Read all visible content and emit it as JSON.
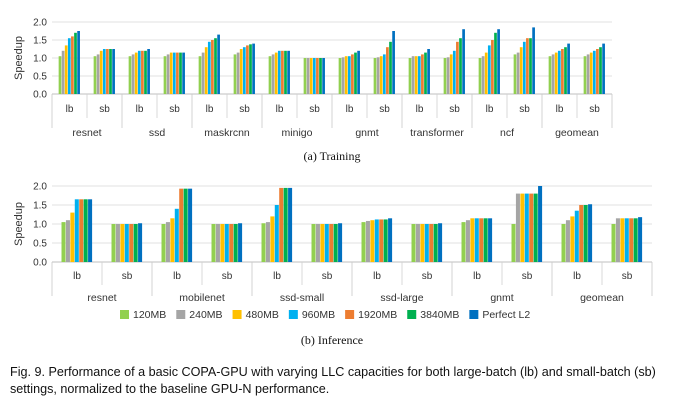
{
  "chart_data": [
    {
      "type": "bar",
      "title": "(a) Training",
      "ylabel": "Speedup",
      "ylim": [
        0,
        2
      ],
      "yticks": [
        "0.0",
        "0.5",
        "1.0",
        "1.5",
        "2.0"
      ],
      "groups": [
        "resnet",
        "ssd",
        "maskrcnn",
        "minigo",
        "gnmt",
        "transformer",
        "ncf",
        "geomean"
      ],
      "categories": [
        "lb",
        "sb"
      ],
      "series": [
        {
          "name": "120MB",
          "values": [
            [
              1.05,
              1.05
            ],
            [
              1.05,
              1.05
            ],
            [
              1.05,
              1.1
            ],
            [
              1.05,
              1.0
            ],
            [
              1.0,
              1.0
            ],
            [
              1.0,
              1.0
            ],
            [
              1.0,
              1.1
            ],
            [
              1.05,
              1.05
            ]
          ]
        },
        {
          "name": "240MB",
          "values": [
            [
              1.2,
              1.1
            ],
            [
              1.1,
              1.1
            ],
            [
              1.15,
              1.15
            ],
            [
              1.1,
              1.0
            ],
            [
              1.02,
              1.02
            ],
            [
              1.05,
              1.02
            ],
            [
              1.05,
              1.15
            ],
            [
              1.1,
              1.1
            ]
          ]
        },
        {
          "name": "480MB",
          "values": [
            [
              1.35,
              1.2
            ],
            [
              1.15,
              1.15
            ],
            [
              1.3,
              1.25
            ],
            [
              1.15,
              1.0
            ],
            [
              1.05,
              1.05
            ],
            [
              1.05,
              1.1
            ],
            [
              1.15,
              1.3
            ],
            [
              1.15,
              1.15
            ]
          ]
        },
        {
          "name": "960MB",
          "values": [
            [
              1.55,
              1.25
            ],
            [
              1.2,
              1.15
            ],
            [
              1.45,
              1.3
            ],
            [
              1.2,
              1.0
            ],
            [
              1.05,
              1.1
            ],
            [
              1.05,
              1.2
            ],
            [
              1.35,
              1.45
            ],
            [
              1.2,
              1.2
            ]
          ]
        },
        {
          "name": "1920MB",
          "values": [
            [
              1.6,
              1.25
            ],
            [
              1.2,
              1.15
            ],
            [
              1.5,
              1.35
            ],
            [
              1.2,
              1.0
            ],
            [
              1.1,
              1.3
            ],
            [
              1.1,
              1.45
            ],
            [
              1.5,
              1.55
            ],
            [
              1.25,
              1.25
            ]
          ]
        },
        {
          "name": "3840MB",
          "values": [
            [
              1.7,
              1.25
            ],
            [
              1.2,
              1.15
            ],
            [
              1.55,
              1.38
            ],
            [
              1.2,
              1.0
            ],
            [
              1.15,
              1.45
            ],
            [
              1.15,
              1.55
            ],
            [
              1.7,
              1.55
            ],
            [
              1.3,
              1.3
            ]
          ]
        },
        {
          "name": "Perfect L2",
          "values": [
            [
              1.75,
              1.25
            ],
            [
              1.25,
              1.15
            ],
            [
              1.65,
              1.4
            ],
            [
              1.2,
              1.0
            ],
            [
              1.2,
              1.75
            ],
            [
              1.25,
              1.8
            ],
            [
              1.8,
              1.85
            ],
            [
              1.4,
              1.4
            ]
          ]
        }
      ]
    },
    {
      "type": "bar",
      "title": "(b) Inference",
      "ylabel": "Speedup",
      "ylim": [
        0,
        2
      ],
      "yticks": [
        "0.0",
        "0.5",
        "1.0",
        "1.5",
        "2.0"
      ],
      "groups": [
        "resnet",
        "mobilenet",
        "ssd-small",
        "ssd-large",
        "gnmt",
        "geomean"
      ],
      "categories": [
        "lb",
        "sb"
      ],
      "series": [
        {
          "name": "120MB",
          "values": [
            [
              1.05,
              1.0
            ],
            [
              1.0,
              1.0
            ],
            [
              1.02,
              1.0
            ],
            [
              1.05,
              1.0
            ],
            [
              1.05,
              1.0
            ],
            [
              1.0,
              1.0
            ]
          ]
        },
        {
          "name": "240MB",
          "values": [
            [
              1.1,
              1.0
            ],
            [
              1.05,
              1.0
            ],
            [
              1.05,
              1.0
            ],
            [
              1.08,
              1.0
            ],
            [
              1.1,
              1.8
            ],
            [
              1.1,
              1.15
            ]
          ]
        },
        {
          "name": "480MB",
          "values": [
            [
              1.3,
              1.0
            ],
            [
              1.15,
              1.0
            ],
            [
              1.2,
              1.0
            ],
            [
              1.1,
              1.0
            ],
            [
              1.15,
              1.8
            ],
            [
              1.2,
              1.15
            ]
          ]
        },
        {
          "name": "960MB",
          "values": [
            [
              1.65,
              1.0
            ],
            [
              1.4,
              1.0
            ],
            [
              1.5,
              1.0
            ],
            [
              1.12,
              1.0
            ],
            [
              1.15,
              1.8
            ],
            [
              1.35,
              1.15
            ]
          ]
        },
        {
          "name": "1920MB",
          "values": [
            [
              1.65,
              1.0
            ],
            [
              1.93,
              1.0
            ],
            [
              1.95,
              1.0
            ],
            [
              1.12,
              1.0
            ],
            [
              1.15,
              1.8
            ],
            [
              1.5,
              1.15
            ]
          ]
        },
        {
          "name": "3840MB",
          "values": [
            [
              1.65,
              1.0
            ],
            [
              1.93,
              1.0
            ],
            [
              1.95,
              1.0
            ],
            [
              1.12,
              1.0
            ],
            [
              1.15,
              1.8
            ],
            [
              1.5,
              1.15
            ]
          ]
        },
        {
          "name": "Perfect L2",
          "values": [
            [
              1.65,
              1.02
            ],
            [
              1.93,
              1.02
            ],
            [
              1.95,
              1.02
            ],
            [
              1.15,
              1.02
            ],
            [
              1.15,
              2.0
            ],
            [
              1.52,
              1.18
            ]
          ]
        }
      ]
    }
  ],
  "legend": {
    "colors": [
      "#92d050",
      "#a5a5a5",
      "#ffc000",
      "#00b0f0",
      "#ed7d31",
      "#00b050",
      "#0070c0"
    ]
  },
  "caption": "Fig. 9.  Performance of a basic COPA-GPU with varying LLC capacities for both large-batch (lb) and small-batch (sb) settings, normalized to the baseline GPU-N performance."
}
